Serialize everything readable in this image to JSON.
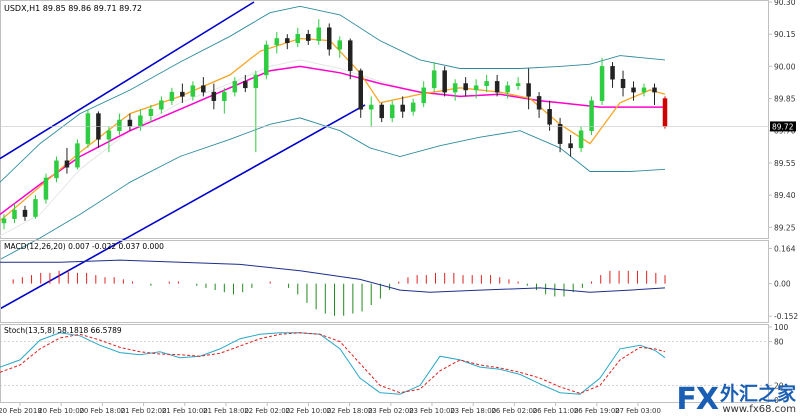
{
  "chart_data": [
    {
      "type": "line",
      "panel": "price",
      "title": "USDX,H1 89.85 89.86 89.71 89.72",
      "ylim": [
        89.2,
        90.3
      ],
      "y_ticks": [
        "90.30",
        "90.15",
        "90.00",
        "89.85",
        "89.70",
        "89.55",
        "89.40",
        "89.25"
      ],
      "y_tick_values": [
        90.3,
        90.15,
        90.0,
        89.85,
        89.7,
        89.55,
        89.4,
        89.25
      ],
      "last_price_label": "89.72",
      "last_price": 89.72,
      "channel_upper": {
        "x": [
          0,
          254
        ],
        "y": [
          89.57,
          90.3
        ]
      },
      "channel_lower": {
        "x": [
          0,
          365
        ],
        "y": [
          88.87,
          89.82
        ]
      },
      "bb_upper": [
        [
          0,
          89.46
        ],
        [
          40,
          89.64
        ],
        [
          80,
          89.78
        ],
        [
          130,
          89.89
        ],
        [
          180,
          90.02
        ],
        [
          230,
          90.14
        ],
        [
          270,
          90.25
        ],
        [
          300,
          90.28
        ],
        [
          340,
          90.24
        ],
        [
          380,
          90.12
        ],
        [
          420,
          90.03
        ],
        [
          460,
          89.99
        ],
        [
          520,
          89.99
        ],
        [
          560,
          90.0
        ],
        [
          590,
          90.01
        ],
        [
          620,
          90.05
        ],
        [
          665,
          90.03
        ]
      ],
      "bb_middle": [
        [
          0,
          89.31
        ],
        [
          40,
          89.45
        ],
        [
          80,
          89.58
        ],
        [
          130,
          89.7
        ],
        [
          180,
          89.8
        ],
        [
          230,
          89.9
        ],
        [
          270,
          89.98
        ],
        [
          300,
          90.0
        ],
        [
          340,
          89.97
        ],
        [
          380,
          89.92
        ],
        [
          420,
          89.88
        ],
        [
          460,
          89.86
        ],
        [
          500,
          89.87
        ],
        [
          540,
          89.84
        ],
        [
          560,
          89.83
        ],
        [
          600,
          89.81
        ],
        [
          640,
          89.81
        ],
        [
          665,
          89.81
        ]
      ],
      "bb_lower": [
        [
          0,
          89.1
        ],
        [
          40,
          89.2
        ],
        [
          80,
          89.31
        ],
        [
          130,
          89.46
        ],
        [
          180,
          89.58
        ],
        [
          230,
          89.66
        ],
        [
          270,
          89.73
        ],
        [
          300,
          89.76
        ],
        [
          340,
          89.7
        ],
        [
          370,
          89.62
        ],
        [
          400,
          89.58
        ],
        [
          440,
          89.63
        ],
        [
          480,
          89.67
        ],
        [
          520,
          89.7
        ],
        [
          560,
          89.62
        ],
        [
          590,
          89.51
        ],
        [
          630,
          89.51
        ],
        [
          665,
          89.52
        ]
      ],
      "ma_fast": [
        [
          0,
          89.28
        ],
        [
          40,
          89.44
        ],
        [
          80,
          89.6
        ],
        [
          130,
          89.78
        ],
        [
          180,
          89.86
        ],
        [
          230,
          89.96
        ],
        [
          260,
          90.07
        ],
        [
          300,
          90.13
        ],
        [
          330,
          90.12
        ],
        [
          360,
          89.97
        ],
        [
          380,
          89.83
        ],
        [
          420,
          89.87
        ],
        [
          460,
          89.9
        ],
        [
          500,
          89.88
        ],
        [
          530,
          89.85
        ],
        [
          560,
          89.73
        ],
        [
          590,
          89.64
        ],
        [
          620,
          89.83
        ],
        [
          650,
          89.89
        ],
        [
          665,
          89.87
        ]
      ],
      "ma_slow": [
        [
          0,
          89.07
        ],
        [
          40,
          89.25
        ],
        [
          80,
          89.46
        ],
        [
          130,
          89.65
        ],
        [
          180,
          89.75
        ],
        [
          230,
          89.84
        ],
        [
          270,
          89.94
        ],
        [
          300,
          90.0
        ],
        [
          340,
          90.01
        ],
        [
          380,
          89.97
        ],
        [
          420,
          89.93
        ],
        [
          460,
          89.91
        ],
        [
          500,
          89.9
        ],
        [
          540,
          89.89
        ],
        [
          580,
          89.86
        ],
        [
          620,
          89.82
        ],
        [
          665,
          89.81
        ]
      ],
      "ma_ref": [
        [
          0,
          89.21
        ],
        [
          40,
          89.31
        ],
        [
          80,
          89.52
        ],
        [
          130,
          89.7
        ],
        [
          180,
          89.83
        ],
        [
          230,
          89.92
        ],
        [
          270,
          90.0
        ],
        [
          300,
          90.03
        ],
        [
          340,
          89.99
        ],
        [
          380,
          89.93
        ],
        [
          410,
          89.89
        ]
      ],
      "candles": [
        [
          89.27,
          89.31,
          89.24,
          89.29
        ],
        [
          89.29,
          89.36,
          89.27,
          89.33
        ],
        [
          89.33,
          89.35,
          89.28,
          89.3
        ],
        [
          89.3,
          89.4,
          89.29,
          89.38
        ],
        [
          89.38,
          89.5,
          89.36,
          89.48
        ],
        [
          89.48,
          89.58,
          89.46,
          89.56
        ],
        [
          89.56,
          89.62,
          89.5,
          89.53
        ],
        [
          89.53,
          89.66,
          89.52,
          89.64
        ],
        [
          89.64,
          89.8,
          89.62,
          89.78
        ],
        [
          89.78,
          89.79,
          89.62,
          89.66
        ],
        [
          89.66,
          89.72,
          89.6,
          89.7
        ],
        [
          89.7,
          89.78,
          89.68,
          89.75
        ],
        [
          89.75,
          89.78,
          89.7,
          89.72
        ],
        [
          89.72,
          89.8,
          89.7,
          89.77
        ],
        [
          89.77,
          89.82,
          89.74,
          89.8
        ],
        [
          89.8,
          89.86,
          89.78,
          89.84
        ],
        [
          89.84,
          89.9,
          89.82,
          89.88
        ],
        [
          89.88,
          89.92,
          89.83,
          89.86
        ],
        [
          89.86,
          89.93,
          89.84,
          89.91
        ],
        [
          89.91,
          89.95,
          89.86,
          89.88
        ],
        [
          89.88,
          89.92,
          89.8,
          89.84
        ],
        [
          89.84,
          89.9,
          89.78,
          89.88
        ],
        [
          89.88,
          89.95,
          89.86,
          89.93
        ],
        [
          89.93,
          89.96,
          89.88,
          89.9
        ],
        [
          89.9,
          89.98,
          89.6,
          89.96
        ],
        [
          89.96,
          90.12,
          89.94,
          90.1
        ],
        [
          90.1,
          90.16,
          90.06,
          90.13
        ],
        [
          90.13,
          90.15,
          90.08,
          90.11
        ],
        [
          90.11,
          90.18,
          90.09,
          90.15
        ],
        [
          90.15,
          90.17,
          90.1,
          90.12
        ],
        [
          90.12,
          90.22,
          90.1,
          90.18
        ],
        [
          90.18,
          90.2,
          90.05,
          90.08
        ],
        [
          90.08,
          90.14,
          90.04,
          90.12
        ],
        [
          90.12,
          90.13,
          89.94,
          89.98
        ],
        [
          89.98,
          89.99,
          89.76,
          89.8
        ],
        [
          89.8,
          89.86,
          89.72,
          89.82
        ],
        [
          89.82,
          89.83,
          89.74,
          89.76
        ],
        [
          89.76,
          89.84,
          89.74,
          89.82
        ],
        [
          89.82,
          89.86,
          89.76,
          89.79
        ],
        [
          89.79,
          89.85,
          89.77,
          89.83
        ],
        [
          89.83,
          89.93,
          89.81,
          89.9
        ],
        [
          89.9,
          90.02,
          89.88,
          89.98
        ],
        [
          89.98,
          90.0,
          89.86,
          89.88
        ],
        [
          89.88,
          89.94,
          89.84,
          89.92
        ],
        [
          89.92,
          89.95,
          89.86,
          89.89
        ],
        [
          89.89,
          89.94,
          89.85,
          89.91
        ],
        [
          89.91,
          89.96,
          89.88,
          89.93
        ],
        [
          89.93,
          89.96,
          89.86,
          89.88
        ],
        [
          89.88,
          89.93,
          89.85,
          89.91
        ],
        [
          89.91,
          89.95,
          89.89,
          89.92
        ],
        [
          89.92,
          89.99,
          89.8,
          89.86
        ],
        [
          89.86,
          89.88,
          89.76,
          89.8
        ],
        [
          89.8,
          89.84,
          89.7,
          89.73
        ],
        [
          89.73,
          89.76,
          89.6,
          89.64
        ],
        [
          89.64,
          89.68,
          89.58,
          89.62
        ],
        [
          89.62,
          89.72,
          89.6,
          89.7
        ],
        [
          89.7,
          89.86,
          89.68,
          89.84
        ],
        [
          89.84,
          90.04,
          89.82,
          90.0
        ],
        [
          90.0,
          90.02,
          89.9,
          89.94
        ],
        [
          89.94,
          89.98,
          89.86,
          89.9
        ],
        [
          89.9,
          89.93,
          89.84,
          89.88
        ],
        [
          89.88,
          89.92,
          89.86,
          89.9
        ],
        [
          89.9,
          89.92,
          89.82,
          89.88
        ],
        [
          89.85,
          89.86,
          89.71,
          89.72
        ]
      ]
    },
    {
      "type": "line",
      "panel": "macd",
      "title": "MACD(12,26,20) 0.007 -0.022 0.037 0.000",
      "ylim": [
        -0.17,
        0.19
      ],
      "y_ticks": [
        "0.164",
        "0.00",
        "-0.152"
      ],
      "y_tick_values": [
        0.164,
        0.0,
        -0.152
      ],
      "macd_line": [
        [
          0,
          0.1
        ],
        [
          60,
          0.1
        ],
        [
          120,
          0.11
        ],
        [
          180,
          0.1
        ],
        [
          240,
          0.09
        ],
        [
          300,
          0.06
        ],
        [
          360,
          0.02
        ],
        [
          400,
          -0.03
        ],
        [
          430,
          -0.04
        ],
        [
          480,
          -0.03
        ],
        [
          540,
          -0.02
        ],
        [
          590,
          -0.04
        ],
        [
          630,
          -0.03
        ],
        [
          665,
          -0.02
        ]
      ],
      "histogram": [
        0.0,
        0.02,
        0.03,
        0.04,
        0.05,
        0.05,
        0.06,
        0.06,
        0.05,
        0.05,
        0.04,
        0.03,
        0.03,
        0.02,
        0.01,
        0.0,
        -0.01,
        0.0,
        0.01,
        0.01,
        0.0,
        -0.01,
        -0.02,
        -0.03,
        -0.04,
        -0.05,
        -0.04,
        -0.02,
        0.0,
        0.01,
        0.0,
        -0.02,
        -0.05,
        -0.09,
        -0.12,
        -0.14,
        -0.15,
        -0.15,
        -0.14,
        -0.13,
        -0.1,
        -0.07,
        -0.03,
        0.01,
        0.03,
        0.04,
        0.04,
        0.05,
        0.05,
        0.05,
        0.04,
        0.04,
        0.04,
        0.04,
        0.03,
        0.02,
        0.01,
        -0.01,
        -0.03,
        -0.05,
        -0.06,
        -0.06,
        -0.04,
        -0.02,
        0.01,
        0.04,
        0.06,
        0.06,
        0.06,
        0.06,
        0.06,
        0.05,
        0.04
      ]
    },
    {
      "type": "line",
      "panel": "stochastic",
      "title": "Stoch(13,5,8) 58.1818 66.5789",
      "ylim": [
        0,
        100
      ],
      "y_ticks": [
        "100",
        "80",
        "20",
        "0"
      ],
      "y_tick_values": [
        100,
        80,
        20,
        0
      ],
      "k_line": [
        [
          0,
          45
        ],
        [
          20,
          55
        ],
        [
          40,
          82
        ],
        [
          60,
          92
        ],
        [
          80,
          88
        ],
        [
          100,
          75
        ],
        [
          120,
          65
        ],
        [
          140,
          62
        ],
        [
          160,
          66
        ],
        [
          180,
          58
        ],
        [
          200,
          60
        ],
        [
          220,
          70
        ],
        [
          240,
          84
        ],
        [
          260,
          90
        ],
        [
          280,
          92
        ],
        [
          300,
          92
        ],
        [
          320,
          90
        ],
        [
          340,
          70
        ],
        [
          360,
          30
        ],
        [
          380,
          10
        ],
        [
          400,
          8
        ],
        [
          420,
          20
        ],
        [
          440,
          60
        ],
        [
          460,
          55
        ],
        [
          480,
          45
        ],
        [
          500,
          42
        ],
        [
          520,
          35
        ],
        [
          540,
          22
        ],
        [
          560,
          10
        ],
        [
          580,
          8
        ],
        [
          600,
          30
        ],
        [
          620,
          70
        ],
        [
          640,
          75
        ],
        [
          655,
          68
        ],
        [
          665,
          58
        ]
      ],
      "d_line": [
        [
          0,
          38
        ],
        [
          20,
          48
        ],
        [
          40,
          70
        ],
        [
          60,
          85
        ],
        [
          80,
          90
        ],
        [
          100,
          82
        ],
        [
          120,
          72
        ],
        [
          140,
          66
        ],
        [
          160,
          63
        ],
        [
          180,
          62
        ],
        [
          200,
          60
        ],
        [
          220,
          64
        ],
        [
          240,
          74
        ],
        [
          260,
          84
        ],
        [
          280,
          90
        ],
        [
          300,
          92
        ],
        [
          320,
          90
        ],
        [
          340,
          80
        ],
        [
          360,
          50
        ],
        [
          380,
          20
        ],
        [
          400,
          10
        ],
        [
          420,
          15
        ],
        [
          440,
          40
        ],
        [
          460,
          55
        ],
        [
          480,
          48
        ],
        [
          500,
          44
        ],
        [
          520,
          38
        ],
        [
          540,
          30
        ],
        [
          560,
          18
        ],
        [
          580,
          9
        ],
        [
          600,
          20
        ],
        [
          620,
          55
        ],
        [
          640,
          72
        ],
        [
          655,
          70
        ],
        [
          665,
          66
        ]
      ]
    }
  ],
  "x_axis": {
    "ticks": [
      "20 Feb 2018",
      "20 Feb 10:00",
      "20 Feb 18:00",
      "21 Feb 02:00",
      "21 Feb 10:00",
      "21 Feb 18:00",
      "22 Feb 02:00",
      "22 Feb 10:00",
      "22 Feb 18:00",
      "23 Feb 02:00",
      "23 Feb 10:00",
      "23 Feb 18:00",
      "26 Feb 02:00",
      "26 Feb 11:00",
      "26 Feb 19:00",
      "27 Feb 03:00"
    ]
  },
  "colors": {
    "background": "#ffffff",
    "axis": "#c0c0c0",
    "grid_tick_text": "#333333",
    "channel": "#0000cc",
    "bb": "#2e8b9e",
    "ma_fast": "#f5a623",
    "ma_slow": "#ff00cc",
    "ma_ref": "#e6e6e6",
    "bull": "#2ecc40",
    "bear": "#222222",
    "bear_last": "#d00000",
    "macd_line": "#1c2f8c",
    "hist_pos": "#e02020",
    "hist_neg": "#1f8a1f",
    "stoch_k": "#28a8c8",
    "stoch_d": "#e02020",
    "last_price_box": "#000000"
  },
  "watermark": {
    "brand": "FX",
    "chinese": "外汇之家",
    "url": "www.fx68.com"
  }
}
